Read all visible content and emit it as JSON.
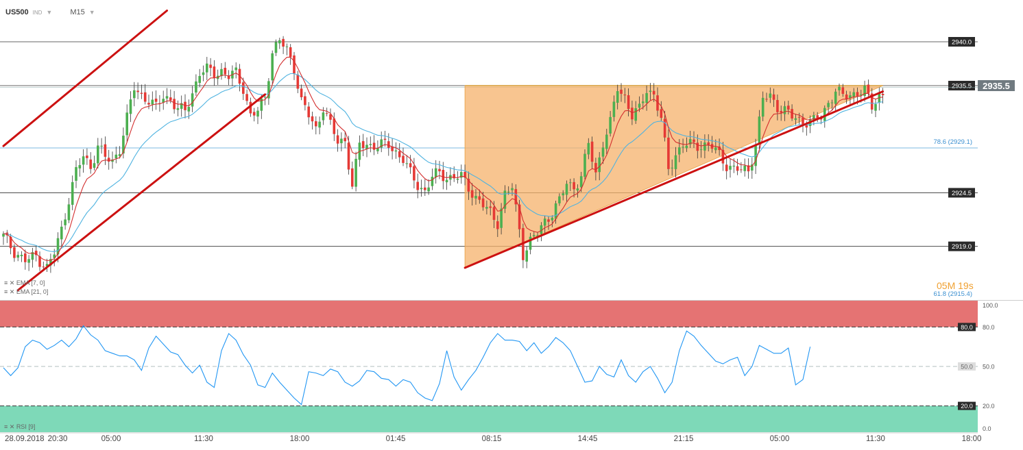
{
  "header": {
    "symbol": "US500",
    "market": "IND",
    "timeframe": "M15"
  },
  "legends": {
    "ema_fast": "EMA [7, 0]",
    "ema_slow": "EMA [21, 0]",
    "rsi": "RSI [9]"
  },
  "timer": {
    "min": "05",
    "min_unit": "M",
    "sec": "19",
    "sec_unit": "s"
  },
  "colors": {
    "bull": "#4caf50",
    "bear": "#e53935",
    "ema_fast": "#d32f2f",
    "ema_slow": "#4fb3e0",
    "triangle_fill": "#f6b26b",
    "trendline": "#cc1111",
    "rsi_line": "#2196f3",
    "overbought": "#e57373",
    "oversold": "#7ed9b8"
  },
  "chart_data": [
    {
      "type": "candlestick",
      "symbol": "US500",
      "timeframe": "M15",
      "y_range": [
        2914.5,
        2943.2
      ],
      "x_ticks": [
        "28.09.2018",
        "20:30",
        "05:00",
        "11:30",
        "18:00",
        "01:45",
        "08:15",
        "14:45",
        "21:15",
        "05:00",
        "11:30",
        "18:00"
      ],
      "levels": [
        {
          "label": "2940.0",
          "value": 2940.0
        },
        {
          "label": "2935.5",
          "value": 2935.5
        },
        {
          "label": "2924.5",
          "value": 2924.5
        },
        {
          "label": "2919.0",
          "value": 2919.0
        }
      ],
      "fib_levels": [
        {
          "label": "78.6 (2929.1)",
          "value": 2929.1
        },
        {
          "label": "61.8 (2915.4)",
          "value": 2915.4
        }
      ],
      "current_price": "2935.5",
      "close_path": [
        [
          0,
          2920.0
        ],
        [
          3,
          2918.5
        ],
        [
          6,
          2917.5
        ],
        [
          9,
          2918.0
        ],
        [
          12,
          2916.8
        ],
        [
          14,
          2918.3
        ],
        [
          16,
          2920.7
        ],
        [
          18,
          2923.9
        ],
        [
          20,
          2926.7
        ],
        [
          22,
          2928.2
        ],
        [
          24,
          2927.2
        ],
        [
          26,
          2929.3
        ],
        [
          28,
          2928.1
        ],
        [
          30,
          2927.7
        ],
        [
          32,
          2929.1
        ],
        [
          34,
          2932.1
        ],
        [
          36,
          2935.3
        ],
        [
          38,
          2934.5
        ],
        [
          40,
          2934.0
        ],
        [
          42,
          2933.2
        ],
        [
          44,
          2934.5
        ],
        [
          46,
          2934.1
        ],
        [
          48,
          2933.0
        ],
        [
          50,
          2932.9
        ],
        [
          52,
          2934.8
        ],
        [
          54,
          2936.8
        ],
        [
          56,
          2937.1
        ],
        [
          58,
          2936.8
        ],
        [
          60,
          2937.0
        ],
        [
          62,
          2936.4
        ],
        [
          64,
          2936.8
        ],
        [
          66,
          2935.3
        ],
        [
          68,
          2932.4
        ],
        [
          70,
          2932.8
        ],
        [
          72,
          2934.4
        ],
        [
          74,
          2939.0
        ],
        [
          76,
          2940.1
        ],
        [
          78,
          2939.1
        ],
        [
          80,
          2937.4
        ],
        [
          82,
          2933.9
        ],
        [
          84,
          2932.4
        ],
        [
          86,
          2931.0
        ],
        [
          88,
          2933.4
        ],
        [
          90,
          2931.4
        ],
        [
          92,
          2929.7
        ],
        [
          94,
          2929.9
        ],
        [
          96,
          2925.2
        ],
        [
          98,
          2929.4
        ],
        [
          100,
          2929.4
        ],
        [
          102,
          2929.4
        ],
        [
          104,
          2929.4
        ],
        [
          106,
          2929.4
        ],
        [
          108,
          2928.7
        ],
        [
          110,
          2928.0
        ],
        [
          112,
          2926.4
        ],
        [
          114,
          2925.3
        ],
        [
          116,
          2924.7
        ],
        [
          118,
          2926.1
        ],
        [
          120,
          2926.5
        ],
        [
          122,
          2926.1
        ],
        [
          124,
          2926.1
        ],
        [
          126,
          2926.1
        ],
        [
          128,
          2925.1
        ],
        [
          130,
          2924.0
        ],
        [
          132,
          2923.2
        ],
        [
          134,
          2922.4
        ],
        [
          136,
          2921.5
        ],
        [
          138,
          2924.3
        ],
        [
          140,
          2925.0
        ],
        [
          142,
          2920.7
        ],
        [
          143,
          2918.3
        ],
        [
          145,
          2919.5
        ],
        [
          147,
          2920.3
        ],
        [
          149,
          2921.6
        ],
        [
          151,
          2922.5
        ],
        [
          153,
          2923.6
        ],
        [
          155,
          2925.5
        ],
        [
          157,
          2925.1
        ],
        [
          159,
          2926.1
        ],
        [
          161,
          2929.5
        ],
        [
          163,
          2926.5
        ],
        [
          165,
          2929.7
        ],
        [
          167,
          2931.6
        ],
        [
          169,
          2935.3
        ],
        [
          171,
          2934.4
        ],
        [
          173,
          2932.4
        ],
        [
          175,
          2933.0
        ],
        [
          177,
          2935.2
        ],
        [
          179,
          2934.6
        ],
        [
          181,
          2932.0
        ],
        [
          183,
          2926.9
        ],
        [
          185,
          2928.5
        ],
        [
          187,
          2929.4
        ],
        [
          189,
          2929.4
        ],
        [
          191,
          2929.4
        ],
        [
          193,
          2929.4
        ],
        [
          195,
          2929.2
        ],
        [
          197,
          2928.4
        ],
        [
          199,
          2927.4
        ],
        [
          201,
          2926.9
        ],
        [
          203,
          2926.8
        ],
        [
          205,
          2926.8
        ],
        [
          207,
          2929.5
        ],
        [
          209,
          2934.1
        ],
        [
          211,
          2934.4
        ],
        [
          213,
          2933.4
        ],
        [
          215,
          2932.9
        ],
        [
          217,
          2932.3
        ],
        [
          219,
          2932.0
        ],
        [
          221,
          2931.8
        ],
        [
          223,
          2931.8
        ],
        [
          225,
          2932.3
        ],
        [
          227,
          2933.8
        ],
        [
          229,
          2934.9
        ],
        [
          231,
          2934.4
        ],
        [
          233,
          2934.6
        ],
        [
          235,
          2934.8
        ],
        [
          237,
          2934.9
        ],
        [
          239,
          2933.4
        ],
        [
          241,
          2934.6
        ]
      ],
      "series": [
        {
          "name": "EMA [7, 0]",
          "kind": "ema",
          "period": 7
        },
        {
          "name": "EMA [21, 0]",
          "kind": "ema",
          "period": 21
        }
      ],
      "trendlines": [
        {
          "from": [
            0,
            2929.3
          ],
          "to": [
            45,
            2943.2
          ]
        },
        {
          "from": [
            4,
            2914.5
          ],
          "to": [
            72,
            2934.6
          ]
        },
        {
          "from": [
            127,
            2916.8
          ],
          "to": [
            242,
            2934.9
          ]
        }
      ],
      "triangle": {
        "apex_left": [
          127,
          2935.5
        ],
        "bottom_left": [
          127,
          2916.8
        ],
        "right": [
          242,
          2935.5
        ]
      }
    },
    {
      "type": "line",
      "title": "RSI [9]",
      "y_range": [
        0,
        100
      ],
      "y_ticks": [
        "100.0",
        "80.0",
        "50.0",
        "20.0",
        "0.0"
      ],
      "overbought": 80,
      "oversold": 20,
      "mid": 50,
      "values": [
        [
          0,
          49
        ],
        [
          2,
          43
        ],
        [
          4,
          49
        ],
        [
          6,
          65
        ],
        [
          8,
          70
        ],
        [
          10,
          68
        ],
        [
          12,
          63
        ],
        [
          14,
          66
        ],
        [
          16,
          70
        ],
        [
          18,
          65
        ],
        [
          20,
          71
        ],
        [
          22,
          81
        ],
        [
          24,
          74
        ],
        [
          26,
          70
        ],
        [
          28,
          62
        ],
        [
          30,
          60
        ],
        [
          32,
          58
        ],
        [
          34,
          58
        ],
        [
          36,
          55
        ],
        [
          38,
          47
        ],
        [
          40,
          64
        ],
        [
          42,
          73
        ],
        [
          44,
          67
        ],
        [
          46,
          61
        ],
        [
          48,
          59
        ],
        [
          50,
          51
        ],
        [
          52,
          45
        ],
        [
          54,
          51
        ],
        [
          56,
          38
        ],
        [
          58,
          34
        ],
        [
          60,
          62
        ],
        [
          62,
          75
        ],
        [
          64,
          70
        ],
        [
          66,
          59
        ],
        [
          68,
          51
        ],
        [
          70,
          36
        ],
        [
          72,
          34
        ],
        [
          74,
          45
        ],
        [
          76,
          38
        ],
        [
          78,
          32
        ],
        [
          80,
          26
        ],
        [
          82,
          21
        ],
        [
          84,
          46
        ],
        [
          86,
          45
        ],
        [
          88,
          43
        ],
        [
          90,
          48
        ],
        [
          92,
          46
        ],
        [
          94,
          38
        ],
        [
          96,
          35
        ],
        [
          98,
          39
        ],
        [
          100,
          47
        ],
        [
          102,
          46
        ],
        [
          104,
          41
        ],
        [
          106,
          40
        ],
        [
          108,
          35
        ],
        [
          110,
          40
        ],
        [
          112,
          38
        ],
        [
          114,
          30
        ],
        [
          116,
          26
        ],
        [
          118,
          24
        ],
        [
          120,
          37
        ],
        [
          122,
          62
        ],
        [
          124,
          42
        ],
        [
          126,
          32
        ],
        [
          128,
          40
        ],
        [
          130,
          47
        ],
        [
          132,
          57
        ],
        [
          134,
          68
        ],
        [
          136,
          75
        ],
        [
          138,
          70
        ],
        [
          140,
          70
        ],
        [
          142,
          69
        ],
        [
          144,
          62
        ],
        [
          146,
          68
        ],
        [
          148,
          60
        ],
        [
          150,
          65
        ],
        [
          152,
          72
        ],
        [
          154,
          68
        ],
        [
          156,
          62
        ],
        [
          158,
          50
        ],
        [
          160,
          38
        ],
        [
          162,
          39
        ],
        [
          164,
          50
        ],
        [
          166,
          44
        ],
        [
          168,
          42
        ],
        [
          170,
          55
        ],
        [
          172,
          43
        ],
        [
          174,
          38
        ],
        [
          176,
          46
        ],
        [
          178,
          50
        ],
        [
          180,
          41
        ],
        [
          182,
          30
        ],
        [
          184,
          38
        ],
        [
          186,
          62
        ],
        [
          188,
          77
        ],
        [
          190,
          73
        ],
        [
          192,
          66
        ],
        [
          194,
          60
        ],
        [
          196,
          54
        ],
        [
          198,
          52
        ],
        [
          200,
          55
        ],
        [
          202,
          57
        ],
        [
          204,
          43
        ],
        [
          206,
          50
        ],
        [
          208,
          66
        ],
        [
          210,
          63
        ],
        [
          212,
          60
        ],
        [
          214,
          60
        ],
        [
          216,
          64
        ],
        [
          218,
          36
        ],
        [
          220,
          40
        ],
        [
          222,
          65
        ]
      ]
    }
  ]
}
